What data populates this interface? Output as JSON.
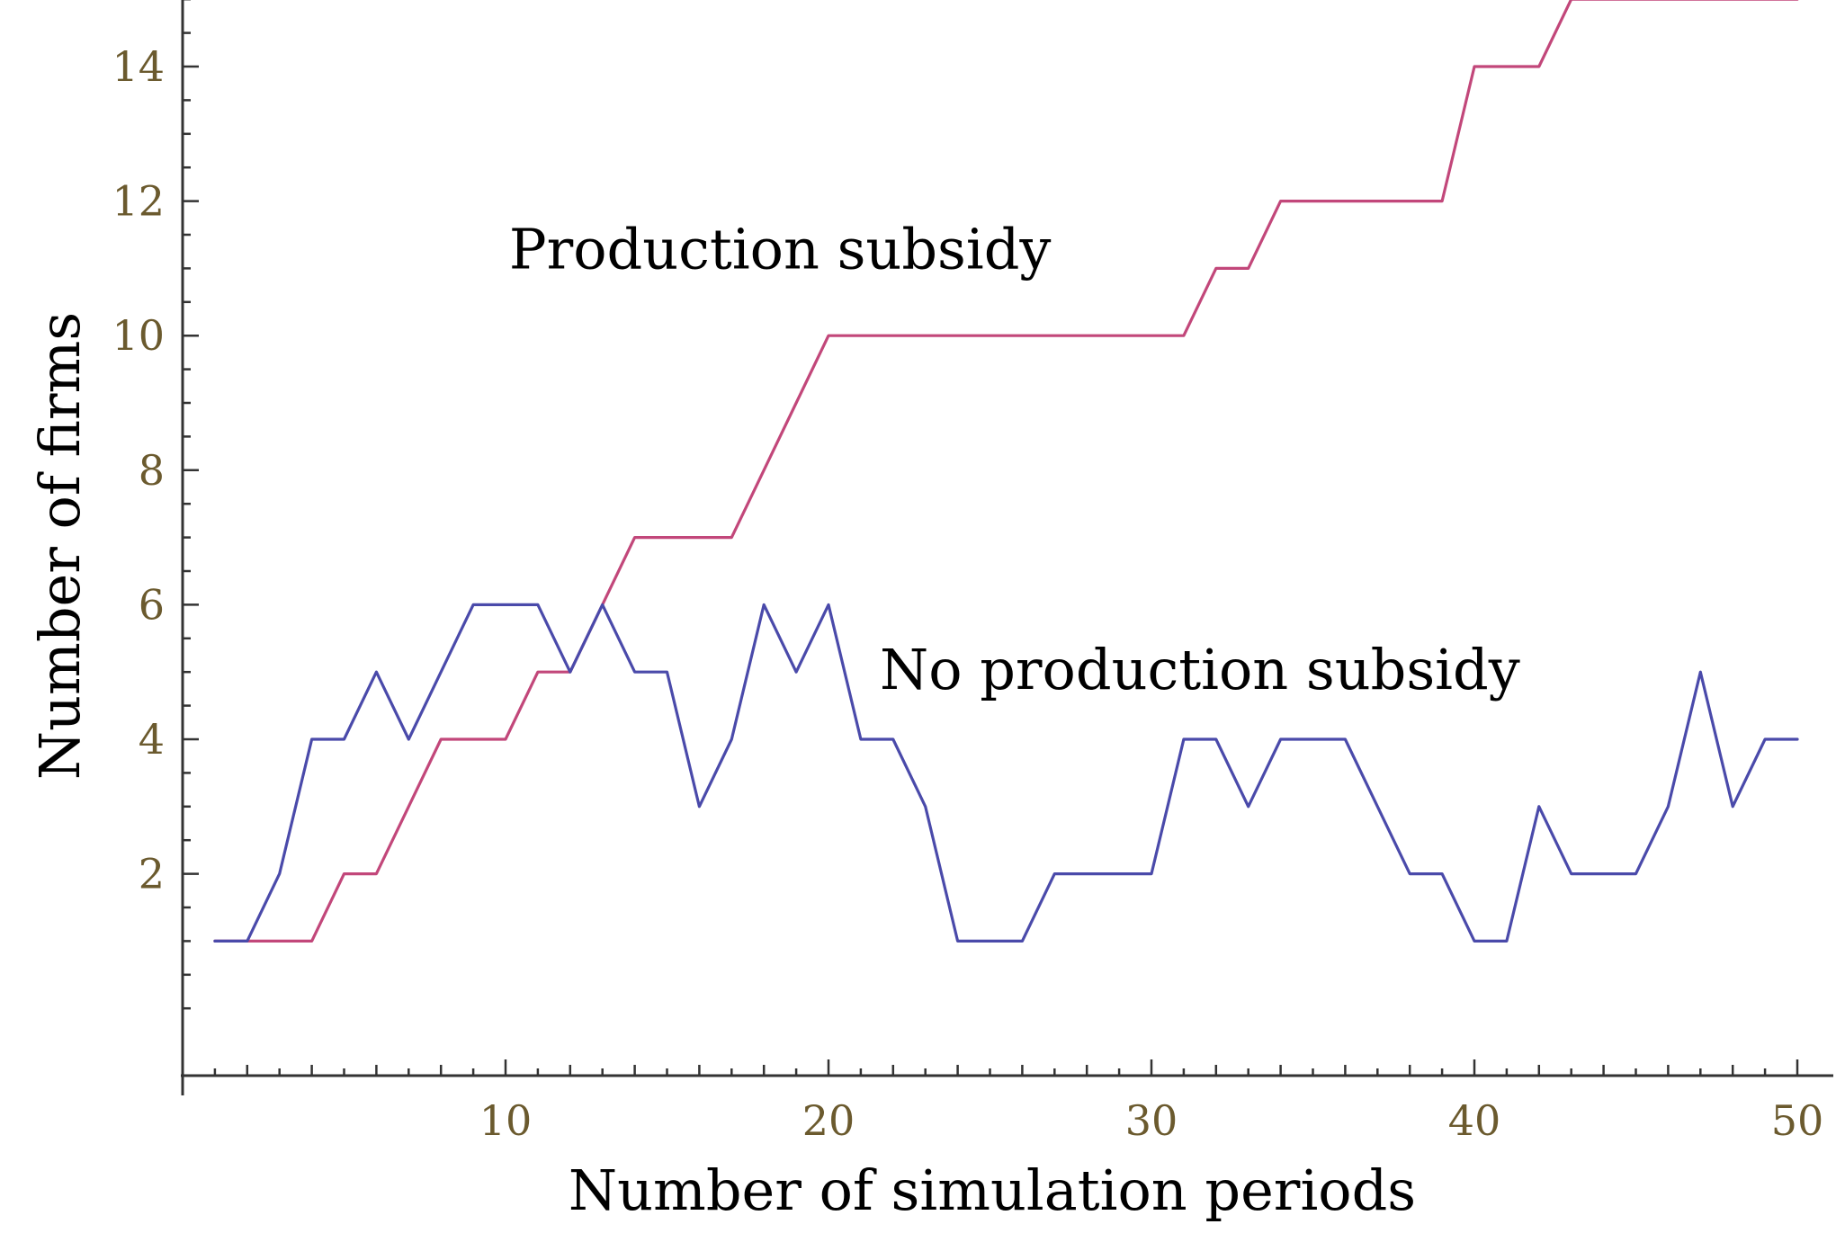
{
  "chart_data": {
    "type": "line",
    "title": "",
    "xlabel": "Number of simulation periods",
    "ylabel": "Number of firms",
    "xlim": [
      0,
      50
    ],
    "ylim": [
      -1,
      15
    ],
    "xticks": [
      10,
      20,
      30,
      40,
      50
    ],
    "xtick_labels": [
      "10",
      "20",
      "30",
      "40",
      "50"
    ],
    "yticks": [
      2,
      4,
      6,
      8,
      10,
      12,
      14
    ],
    "ytick_labels": [
      "2",
      "4",
      "6",
      "8",
      "10",
      "12",
      "14"
    ],
    "grid": false,
    "annotations": [
      {
        "text": "Production subsidy",
        "series": "Production subsidy",
        "x": 18.5,
        "y": 11
      },
      {
        "text": "No production subsidy",
        "series": "No production subsidy",
        "x": 31.5,
        "y": 4.75
      }
    ],
    "series": [
      {
        "name": "Production subsidy",
        "color": "#c2477a",
        "x": [
          1,
          2,
          3,
          4,
          5,
          6,
          7,
          8,
          9,
          10,
          11,
          12,
          13,
          14,
          15,
          16,
          17,
          18,
          19,
          20,
          21,
          22,
          23,
          24,
          25,
          26,
          27,
          28,
          29,
          30,
          31,
          32,
          33,
          34,
          35,
          36,
          37,
          38,
          39,
          40,
          41,
          42,
          43,
          44,
          45,
          46,
          47,
          48,
          49,
          50
        ],
        "values": [
          1,
          1,
          1,
          1,
          2,
          2,
          3,
          4,
          4,
          4,
          5,
          5,
          6,
          7,
          7,
          7,
          7,
          8,
          9,
          10,
          10,
          10,
          10,
          10,
          10,
          10,
          10,
          10,
          10,
          10,
          10,
          11,
          11,
          12,
          12,
          12,
          12,
          12,
          12,
          14,
          14,
          14,
          15,
          15,
          15,
          15,
          15,
          15,
          15,
          15
        ]
      },
      {
        "name": "No production subsidy",
        "color": "#4a4aaa",
        "x": [
          1,
          2,
          3,
          4,
          5,
          6,
          7,
          8,
          9,
          10,
          11,
          12,
          13,
          14,
          15,
          16,
          17,
          18,
          19,
          20,
          21,
          22,
          23,
          24,
          25,
          26,
          27,
          28,
          29,
          30,
          31,
          32,
          33,
          34,
          35,
          36,
          37,
          38,
          39,
          40,
          41,
          42,
          43,
          44,
          45,
          46,
          47,
          48,
          49,
          50
        ],
        "values": [
          1,
          1,
          2,
          4,
          4,
          5,
          4,
          5,
          6,
          6,
          6,
          5,
          6,
          5,
          5,
          3,
          4,
          6,
          5,
          6,
          4,
          4,
          3,
          1,
          1,
          1,
          2,
          2,
          2,
          2,
          4,
          4,
          3,
          4,
          4,
          4,
          3,
          2,
          2,
          1,
          1,
          3,
          2,
          2,
          2,
          3,
          5,
          3,
          4,
          4
        ]
      }
    ]
  }
}
